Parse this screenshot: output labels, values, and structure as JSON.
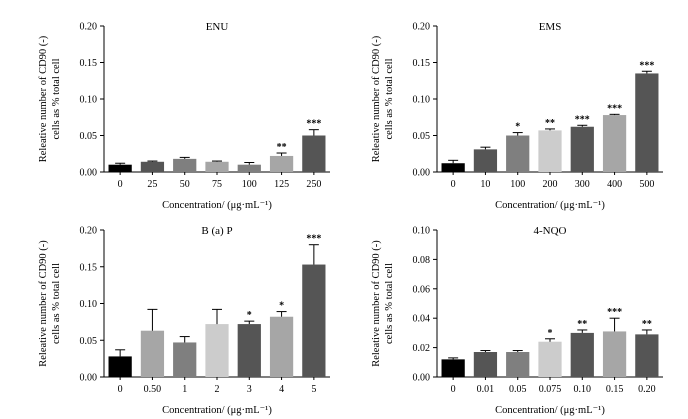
{
  "chart_data": [
    {
      "type": "bar",
      "title": "ENU",
      "xlabel": "Concentration/ (μg·mL⁻¹)",
      "ylabel": [
        "Releative number of CD90 (-)",
        "cells as % total cell"
      ],
      "ylim": [
        0,
        0.2
      ],
      "yticks": [
        "0.00",
        "0.05",
        "0.10",
        "0.15",
        "0.20"
      ],
      "categories": [
        "0",
        "25",
        "50",
        "75",
        "100",
        "125",
        "250"
      ],
      "values": [
        0.01,
        0.014,
        0.018,
        0.014,
        0.01,
        0.022,
        0.05
      ],
      "errors": [
        0.002,
        0.001,
        0.002,
        0.001,
        0.003,
        0.004,
        0.008
      ],
      "significance": [
        "",
        "",
        "",
        "",
        "",
        "**",
        "***"
      ],
      "colors": [
        "#000000",
        "#555555",
        "#7f7f7f",
        "#a6a6a6",
        "#7f7f7f",
        "#a6a6a6",
        "#555555"
      ]
    },
    {
      "type": "bar",
      "title": "EMS",
      "xlabel": "Concentration/ (μg·mL⁻¹)",
      "ylabel": [
        "Releative number of CD90 (-)",
        "cells as % total cell"
      ],
      "ylim": [
        0,
        0.2
      ],
      "yticks": [
        "0.00",
        "0.05",
        "0.10",
        "0.15",
        "0.20"
      ],
      "categories": [
        "0",
        "10",
        "100",
        "200",
        "300",
        "400",
        "500"
      ],
      "values": [
        0.012,
        0.031,
        0.05,
        0.057,
        0.062,
        0.078,
        0.135
      ],
      "errors": [
        0.004,
        0.003,
        0.004,
        0.002,
        0.002,
        0.001,
        0.003
      ],
      "significance": [
        "",
        "",
        "*",
        "**",
        "***",
        "***",
        "***"
      ],
      "colors": [
        "#000000",
        "#555555",
        "#7f7f7f",
        "#cccccc",
        "#555555",
        "#a6a6a6",
        "#555555"
      ]
    },
    {
      "type": "bar",
      "title": "B (a) P",
      "xlabel": "Concentration/ (μg·mL⁻¹)",
      "ylabel": [
        "Releative number of CD90 (-)",
        "cells as % total cell"
      ],
      "ylim": [
        0,
        0.2
      ],
      "yticks": [
        "0.00",
        "0.05",
        "0.10",
        "0.15",
        "0.20"
      ],
      "categories": [
        "0",
        "0.50",
        "1",
        "2",
        "3",
        "4",
        "5"
      ],
      "values": [
        0.028,
        0.063,
        0.047,
        0.072,
        0.072,
        0.082,
        0.153
      ],
      "errors": [
        0.009,
        0.029,
        0.008,
        0.02,
        0.004,
        0.007,
        0.027
      ],
      "significance": [
        "",
        "",
        "",
        "",
        "*",
        "*",
        "***"
      ],
      "colors": [
        "#000000",
        "#a6a6a6",
        "#7f7f7f",
        "#cccccc",
        "#555555",
        "#a6a6a6",
        "#555555"
      ]
    },
    {
      "type": "bar",
      "title": "4-NQO",
      "xlabel": "Concentration/ (μg·mL⁻¹)",
      "ylabel": [
        "Releative number of CD90 (-)",
        "cells as % total cell"
      ],
      "ylim": [
        0,
        0.1
      ],
      "yticks": [
        "0.00",
        "0.02",
        "0.04",
        "0.06",
        "0.08",
        "0.10"
      ],
      "categories": [
        "0",
        "0.01",
        "0.05",
        "0.075",
        "0.10",
        "0.15",
        "0.20"
      ],
      "values": [
        0.012,
        0.017,
        0.017,
        0.024,
        0.03,
        0.031,
        0.029
      ],
      "errors": [
        0.001,
        0.001,
        0.001,
        0.002,
        0.002,
        0.009,
        0.003
      ],
      "significance": [
        "",
        "",
        "",
        "*",
        "**",
        "***",
        "**"
      ],
      "colors": [
        "#000000",
        "#555555",
        "#7f7f7f",
        "#cccccc",
        "#555555",
        "#a6a6a6",
        "#555555"
      ]
    }
  ]
}
